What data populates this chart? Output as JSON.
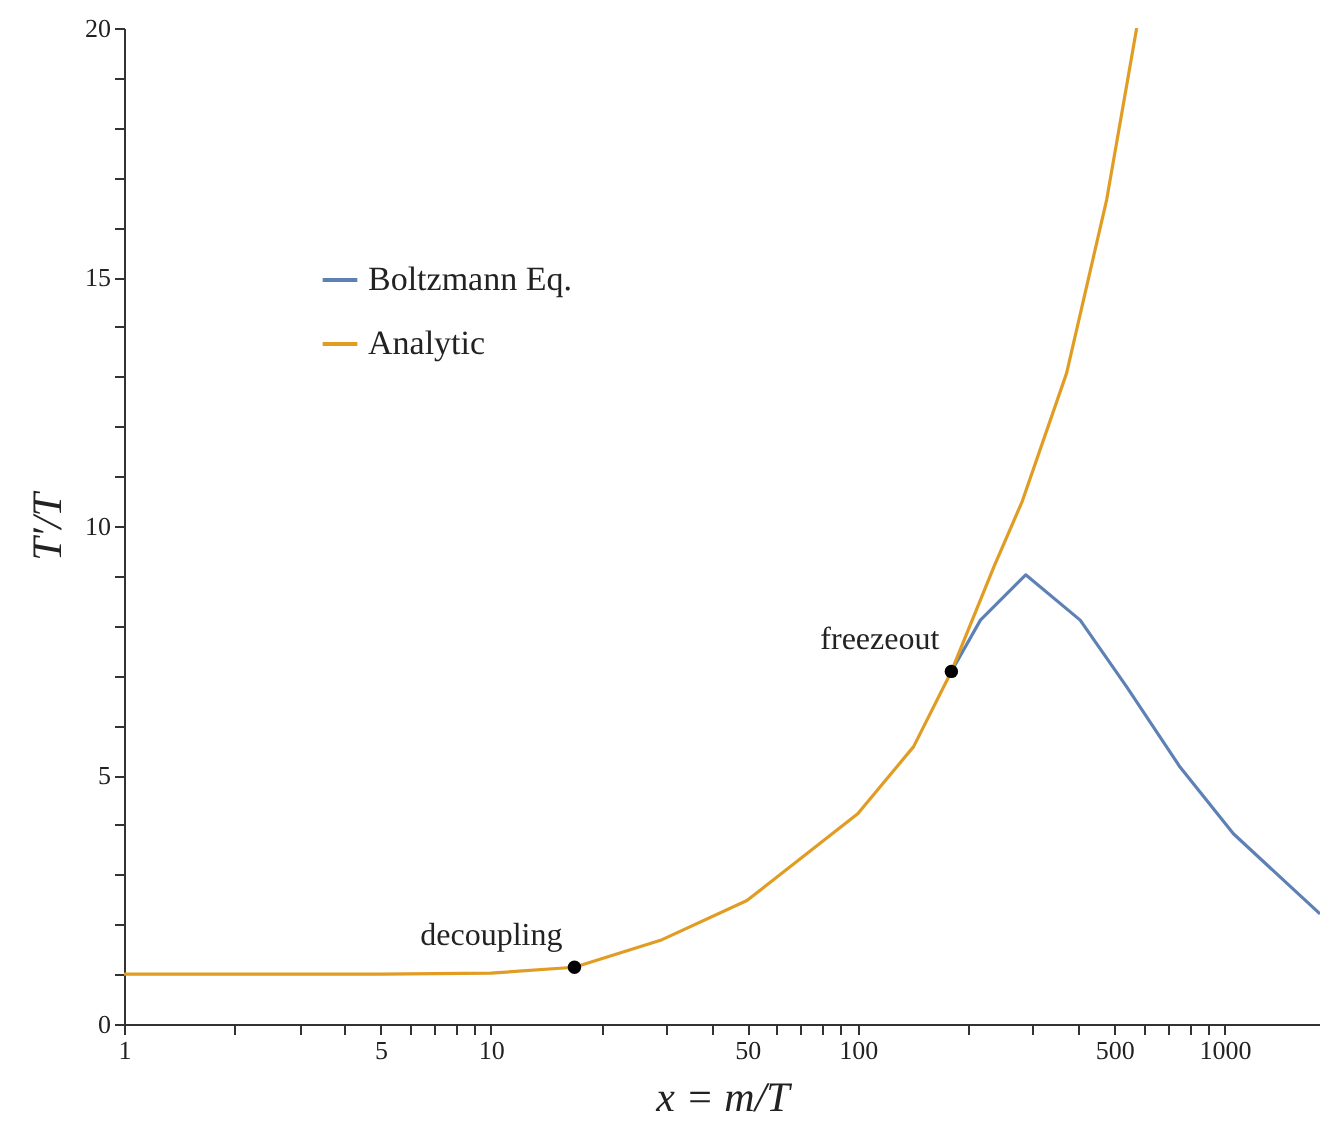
{
  "chart_data": {
    "type": "line",
    "xlabel": "x = m/T",
    "ylabel": "T′/T",
    "log": "x",
    "legend": "top left",
    "grid": false,
    "xlim": [
      1,
      1820
    ],
    "ylim": [
      0,
      20
    ],
    "xticks": [
      1,
      {
        "value": 2,
        "label": null
      },
      {
        "value": 3,
        "label": null
      },
      {
        "value": 4,
        "label": null
      },
      5,
      {
        "value": 6,
        "label": null
      },
      {
        "value": 7,
        "label": null
      },
      {
        "value": 8,
        "label": null
      },
      {
        "value": 9,
        "label": null
      },
      10,
      {
        "value": 20,
        "label": null
      },
      {
        "value": 30,
        "label": null
      },
      {
        "value": 40,
        "label": null
      },
      50,
      {
        "value": 60,
        "label": null
      },
      {
        "value": 70,
        "label": null
      },
      {
        "value": 80,
        "label": null
      },
      {
        "value": 90,
        "label": null
      },
      100,
      {
        "value": 200,
        "label": null
      },
      {
        "value": 300,
        "label": null
      },
      {
        "value": 400,
        "label": null
      },
      500,
      {
        "value": 600,
        "label": null
      },
      {
        "value": 700,
        "label": null
      },
      {
        "value": 800,
        "label": null
      },
      {
        "value": 900,
        "label": null
      },
      1000
    ],
    "yticks": [
      0,
      {
        "value": 1,
        "label": null
      },
      {
        "value": 2,
        "label": null
      },
      {
        "value": 3,
        "label": null
      },
      {
        "value": 4,
        "label": null
      },
      5,
      {
        "value": 6,
        "label": null
      },
      {
        "value": 7,
        "label": null
      },
      {
        "value": 8,
        "label": null
      },
      {
        "value": 9,
        "label": null
      },
      10,
      {
        "value": 11,
        "label": null
      },
      {
        "value": 12,
        "label": null
      },
      {
        "value": 13,
        "label": null
      },
      {
        "value": 14,
        "label": null
      },
      15,
      {
        "value": 16,
        "label": null
      },
      {
        "value": 17,
        "label": null
      },
      {
        "value": 18,
        "label": null
      },
      {
        "value": 19,
        "label": null
      },
      20
    ],
    "annotations": [
      {
        "text": "decoupling",
        "x": 16.9,
        "y": 1.14
      },
      {
        "text": "freezeout",
        "x": 180,
        "y": 7.08
      }
    ],
    "series": [
      {
        "name": "Boltzmann Eq.",
        "color": "#5e81b5",
        "type": "line",
        "x": [
          180,
          216,
          287,
          404,
          541,
          756,
          1057,
          1820
        ],
        "values": [
          7.08,
          8.11,
          9.02,
          8.11,
          6.77,
          5.16,
          3.82,
          2.21
        ]
      },
      {
        "name": "Analytic",
        "color": "#e19c24",
        "type": "line",
        "x": [
          1,
          5,
          10,
          16.9,
          29,
          49.9,
          100,
          142,
          180,
          235,
          281,
          371,
          477,
          576
        ],
        "values": [
          1,
          1,
          1.02,
          1.14,
          1.68,
          2.48,
          4.22,
          5.57,
          7.08,
          9.18,
          10.5,
          13.07,
          16.55,
          20
        ]
      },
      {
        "type": "scatter",
        "color": "#000000",
        "marker": "circle",
        "x": [
          16.9,
          180
        ],
        "values": [
          1.14,
          7.08
        ]
      }
    ]
  }
}
